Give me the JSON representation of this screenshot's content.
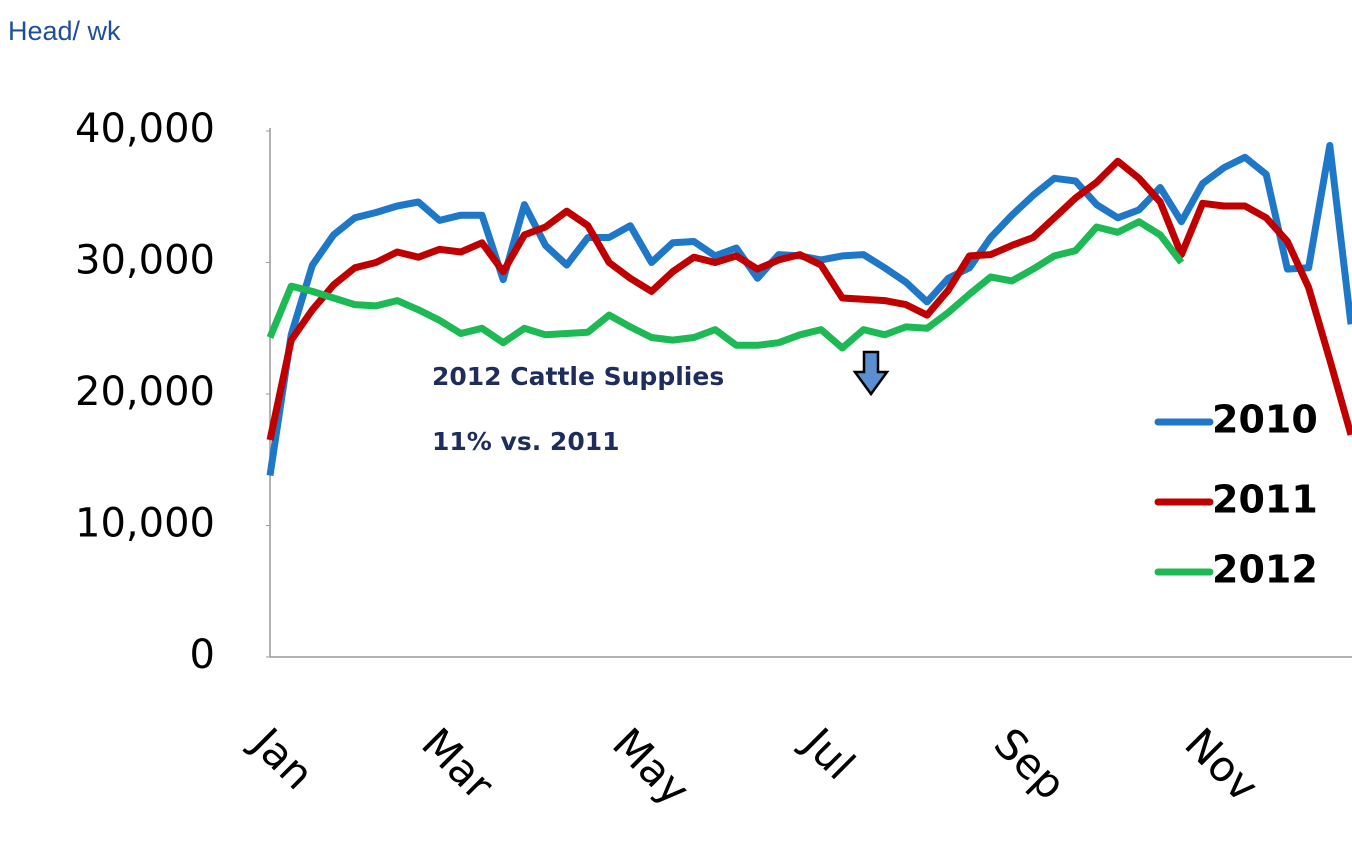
{
  "chart_data": {
    "type": "line",
    "ylabel": "Head/ wk",
    "annotations": [
      "2012 Cattle Supplies",
      "11% vs. 2011"
    ],
    "categories": [
      "Jan",
      null,
      null,
      null,
      null,
      null,
      null,
      null,
      "Mar",
      null,
      null,
      null,
      null,
      null,
      null,
      null,
      null,
      "May",
      null,
      null,
      null,
      null,
      null,
      null,
      null,
      null,
      "Jul",
      null,
      null,
      null,
      null,
      null,
      null,
      null,
      null,
      "Sep",
      null,
      null,
      null,
      null,
      null,
      null,
      null,
      null,
      "Nov",
      null,
      null,
      null,
      null,
      null,
      null,
      null
    ],
    "series": [
      {
        "name": "2010",
        "color": "#1f77c8",
        "values": [
          13800,
          24500,
          29800,
          32100,
          33400,
          33800,
          34300,
          34600,
          33200,
          33600,
          33600,
          28700,
          34400,
          31300,
          29800,
          31900,
          31900,
          32800,
          30000,
          31500,
          31600,
          30500,
          31100,
          28800,
          30600,
          30500,
          30200,
          30500,
          30600,
          29600,
          28500,
          27000,
          28800,
          29600,
          31900,
          33600,
          35100,
          36400,
          36200,
          34400,
          33400,
          34000,
          35700,
          33100,
          36000,
          37200,
          38000,
          36700,
          29500,
          29600,
          38900,
          25300
        ]
      },
      {
        "name": "2011",
        "color": "#c00000",
        "values": [
          16500,
          24100,
          26400,
          28300,
          29600,
          30000,
          30800,
          30400,
          31000,
          30800,
          31500,
          29300,
          32100,
          32700,
          33900,
          32800,
          30000,
          28800,
          27800,
          29300,
          30400,
          30000,
          30500,
          29500,
          30200,
          30600,
          29800,
          27300,
          27200,
          27100,
          26800,
          26000,
          27900,
          30500,
          30600,
          31300,
          31900,
          33400,
          34900,
          36100,
          37700,
          36400,
          34600,
          30600,
          34500,
          34300,
          34300,
          33400,
          31600,
          28100,
          22600,
          16900
        ]
      },
      {
        "name": "2012",
        "color": "#1db954",
        "values": [
          24300,
          28200,
          27800,
          27300,
          26800,
          26700,
          27100,
          26400,
          25600,
          24600,
          25000,
          23900,
          25000,
          24500,
          24600,
          24700,
          26000,
          25100,
          24300,
          24100,
          24300,
          24900,
          23700,
          23700,
          23900,
          24500,
          24900,
          23500,
          24900,
          24500,
          25100,
          25000,
          26200,
          27600,
          28900,
          28600,
          29500,
          30500,
          30900,
          32700,
          32300,
          33100,
          32100,
          30000,
          null,
          null,
          null,
          null,
          null,
          null,
          null,
          null
        ]
      }
    ],
    "ylim": [
      0,
      40000
    ],
    "yticks": [
      0,
      {
        "value": 10000,
        "label": "10,000"
      },
      {
        "value": 20000,
        "label": "20,000"
      },
      {
        "value": 30000,
        "label": "30,000"
      },
      {
        "value": 40000,
        "label": "40,000"
      }
    ],
    "grid": false,
    "legend": "right"
  }
}
